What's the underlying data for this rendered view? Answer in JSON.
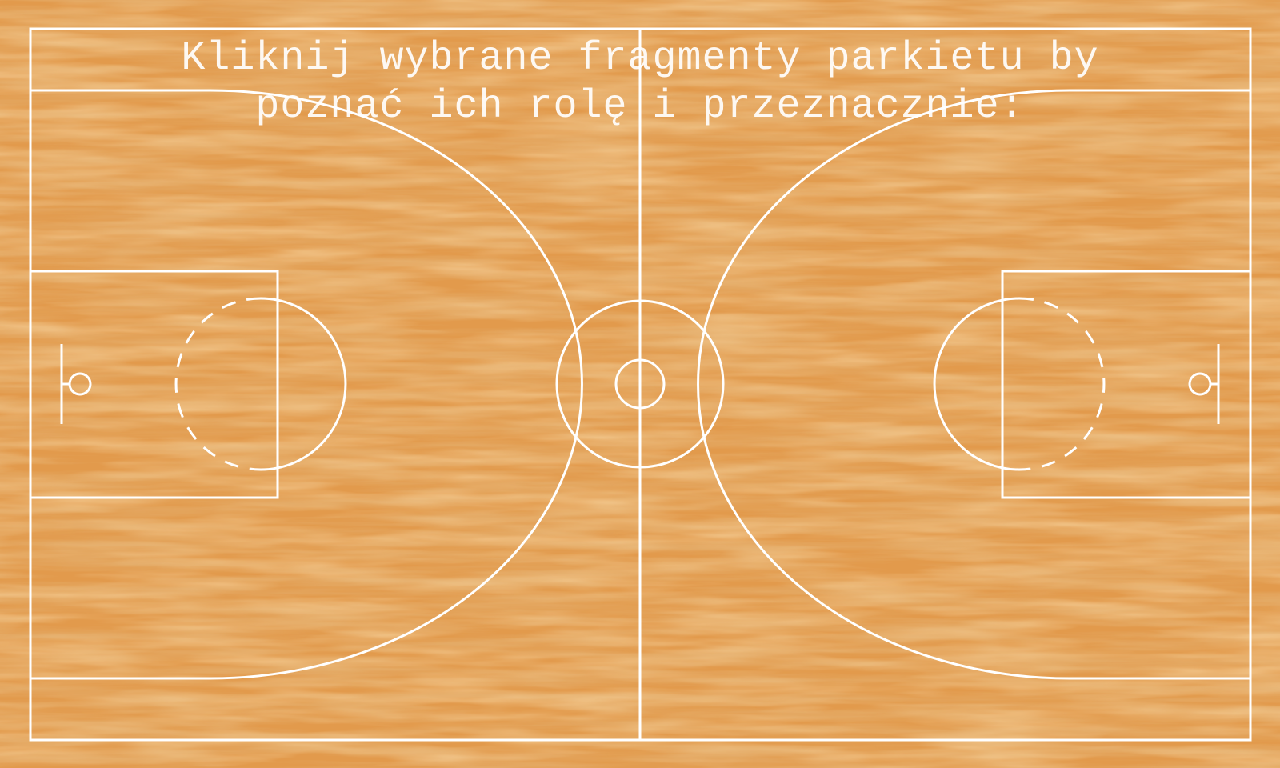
{
  "instruction": {
    "line1": "Kliknij wybrane fragmenty parkietu by",
    "line2": "poznać ich rolę i przeznacznie:"
  },
  "colors": {
    "wood_base": "#e29a4c",
    "wood_light": "#f0b060",
    "wood_dark": "#c77a30",
    "court_lines": "#ffffff"
  },
  "court_areas": [
    "boundary-lines",
    "midcourt-line",
    "center-circle",
    "left-three-point-line",
    "right-three-point-line",
    "left-restricted-area",
    "right-restricted-area",
    "left-free-throw-circle",
    "right-free-throw-circle",
    "left-basket",
    "right-basket"
  ]
}
